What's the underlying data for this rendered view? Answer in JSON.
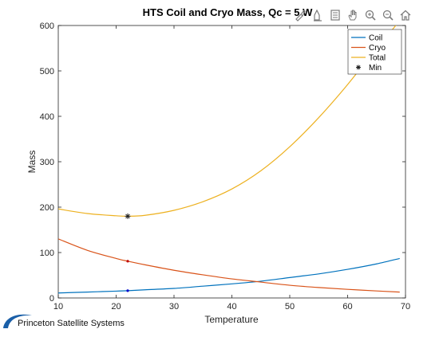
{
  "chart_data": {
    "type": "line",
    "title": "HTS Coil and Cryo Mass, Qc = 5 W",
    "xlabel": "Temperature",
    "ylabel": "Mass",
    "xlim": [
      10,
      70
    ],
    "ylim": [
      0,
      600
    ],
    "xticks": [
      10,
      20,
      30,
      40,
      50,
      60,
      70
    ],
    "yticks": [
      0,
      100,
      200,
      300,
      400,
      500,
      600
    ],
    "grid": false,
    "legend_position": "top-right",
    "series": [
      {
        "name": "Coil",
        "color": "#0072BD",
        "x": [
          10,
          15,
          20,
          22,
          25,
          30,
          35,
          40,
          45,
          50,
          55,
          60,
          65,
          69
        ],
        "y": [
          11,
          13,
          15,
          16,
          18,
          21,
          26,
          31,
          37,
          45,
          53,
          63,
          75,
          87
        ]
      },
      {
        "name": "Cryo",
        "color": "#D95319",
        "x": [
          10,
          15,
          20,
          22,
          25,
          30,
          35,
          40,
          45,
          50,
          55,
          60,
          65,
          69
        ],
        "y": [
          130,
          105,
          87,
          81,
          73,
          61,
          51,
          42,
          35,
          28,
          23,
          19,
          15.5,
          13
        ]
      },
      {
        "name": "Total",
        "color": "#EDB120",
        "x": [
          10,
          15,
          20,
          22,
          25,
          30,
          35,
          40,
          45,
          50,
          55,
          60,
          65,
          69
        ],
        "y": [
          196,
          186,
          181,
          180,
          182,
          193,
          212,
          240,
          280,
          333,
          397,
          470,
          550,
          610
        ]
      }
    ],
    "min_markers": {
      "name": "Min",
      "x": 22,
      "y_total": 180,
      "y_coil": 16,
      "y_cryo": 81
    }
  },
  "toolbar": {
    "icons": [
      "brush-icon",
      "data-tips-icon",
      "legend-icon",
      "pan-icon",
      "zoom-in-icon",
      "zoom-out-icon",
      "home-icon"
    ]
  },
  "logo": {
    "text": "Princeton Satellite Systems",
    "color": "#1a5fa8"
  }
}
